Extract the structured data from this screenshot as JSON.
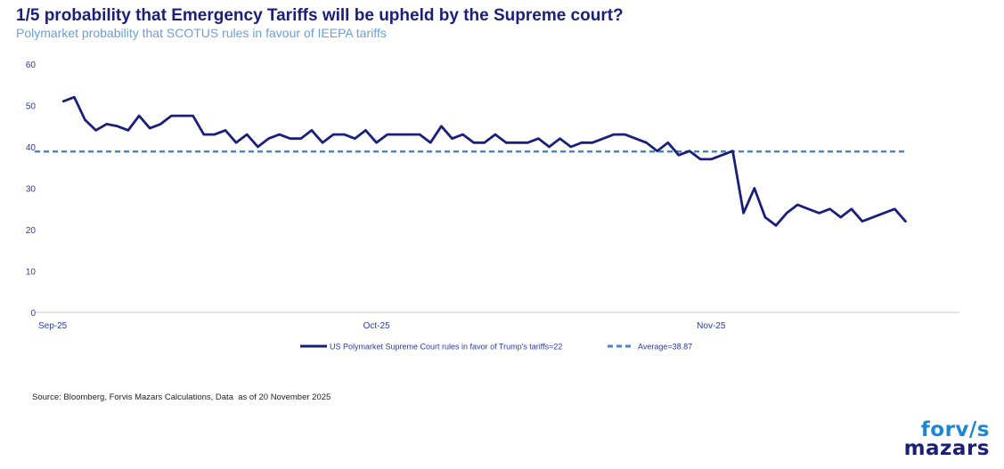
{
  "header": {
    "title": "1/5 probability that Emergency Tariffs will be upheld by the Supreme court?",
    "subtitle": "Polymarket probability that SCOTUS rules in favour of IEEPA tariffs"
  },
  "footer": {
    "source": "Source: Bloomberg, Forvis Mazars Calculations, Data  as of 20 November 2025"
  },
  "logo": {
    "line1": "forv/s",
    "line2": "mazars"
  },
  "colors": {
    "series": "#1a1f7a",
    "average": "#4a86c8",
    "axis_text": "#2b3a9f",
    "axis_line": "#c8c8c8"
  },
  "chart_data": {
    "type": "line",
    "title": "1/5 probability that Emergency Tariffs will be upheld by the Supreme court?",
    "subtitle": "Polymarket probability that SCOTUS rules in favour of IEEPA tariffs",
    "ylim": [
      0,
      60
    ],
    "yticks": [
      0,
      10,
      20,
      30,
      40,
      50,
      60
    ],
    "x_tick_labels": [
      "Sep-25",
      "Oct-25",
      "Nov-25"
    ],
    "x_tick_dates": [
      "2025-09-01",
      "2025-10-01",
      "2025-11-01"
    ],
    "grid": false,
    "legend_position": "bottom",
    "series": [
      {
        "name": "US Polymarket Supreme Court rules in favor of Trump's tariffs=22",
        "style": "solid",
        "points": [
          [
            "2025-09-02",
            51
          ],
          [
            "2025-09-03",
            52
          ],
          [
            "2025-09-04",
            46.5
          ],
          [
            "2025-09-05",
            44
          ],
          [
            "2025-09-06",
            45.5
          ],
          [
            "2025-09-07",
            45
          ],
          [
            "2025-09-08",
            44
          ],
          [
            "2025-09-09",
            47.5
          ],
          [
            "2025-09-10",
            44.5
          ],
          [
            "2025-09-11",
            45.5
          ],
          [
            "2025-09-12",
            47.5
          ],
          [
            "2025-09-13",
            47.5
          ],
          [
            "2025-09-14",
            47.5
          ],
          [
            "2025-09-15",
            43
          ],
          [
            "2025-09-16",
            43
          ],
          [
            "2025-09-17",
            44
          ],
          [
            "2025-09-18",
            41
          ],
          [
            "2025-09-19",
            43
          ],
          [
            "2025-09-20",
            40
          ],
          [
            "2025-09-21",
            42
          ],
          [
            "2025-09-22",
            43
          ],
          [
            "2025-09-23",
            42
          ],
          [
            "2025-09-24",
            42
          ],
          [
            "2025-09-25",
            44
          ],
          [
            "2025-09-26",
            41
          ],
          [
            "2025-09-27",
            43
          ],
          [
            "2025-09-28",
            43
          ],
          [
            "2025-09-29",
            42
          ],
          [
            "2025-09-30",
            44
          ],
          [
            "2025-10-01",
            41
          ],
          [
            "2025-10-02",
            43
          ],
          [
            "2025-10-03",
            43
          ],
          [
            "2025-10-04",
            43
          ],
          [
            "2025-10-05",
            43
          ],
          [
            "2025-10-06",
            41
          ],
          [
            "2025-10-07",
            45
          ],
          [
            "2025-10-08",
            42
          ],
          [
            "2025-10-09",
            43
          ],
          [
            "2025-10-10",
            41
          ],
          [
            "2025-10-11",
            41
          ],
          [
            "2025-10-12",
            43
          ],
          [
            "2025-10-13",
            41
          ],
          [
            "2025-10-14",
            41
          ],
          [
            "2025-10-15",
            41
          ],
          [
            "2025-10-16",
            42
          ],
          [
            "2025-10-17",
            40
          ],
          [
            "2025-10-18",
            42
          ],
          [
            "2025-10-19",
            40
          ],
          [
            "2025-10-20",
            41
          ],
          [
            "2025-10-21",
            41
          ],
          [
            "2025-10-22",
            42
          ],
          [
            "2025-10-23",
            43
          ],
          [
            "2025-10-24",
            43
          ],
          [
            "2025-10-25",
            42
          ],
          [
            "2025-10-26",
            41
          ],
          [
            "2025-10-27",
            39
          ],
          [
            "2025-10-28",
            41
          ],
          [
            "2025-10-29",
            38
          ],
          [
            "2025-10-30",
            39
          ],
          [
            "2025-10-31",
            37
          ],
          [
            "2025-11-01",
            37
          ],
          [
            "2025-11-02",
            38
          ],
          [
            "2025-11-03",
            39
          ],
          [
            "2025-11-04",
            24
          ],
          [
            "2025-11-05",
            30
          ],
          [
            "2025-11-06",
            23
          ],
          [
            "2025-11-07",
            21
          ],
          [
            "2025-11-08",
            24
          ],
          [
            "2025-11-09",
            26
          ],
          [
            "2025-11-10",
            25
          ],
          [
            "2025-11-11",
            24
          ],
          [
            "2025-11-12",
            25
          ],
          [
            "2025-11-13",
            23
          ],
          [
            "2025-11-14",
            25
          ],
          [
            "2025-11-15",
            22
          ],
          [
            "2025-11-16",
            23
          ],
          [
            "2025-11-17",
            24
          ],
          [
            "2025-11-18",
            25
          ],
          [
            "2025-11-19",
            22
          ]
        ]
      },
      {
        "name": "Average=38.87",
        "style": "dashed",
        "points": [
          [
            "2025-08-31",
            38.87
          ],
          [
            "2025-11-19",
            38.87
          ]
        ]
      }
    ]
  }
}
